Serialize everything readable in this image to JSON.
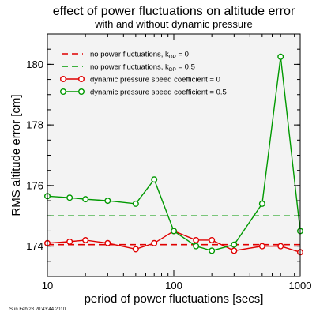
{
  "chart_data": {
    "type": "line",
    "title": "effect of power fluctuations on altitude error",
    "subtitle": "with and without dynamic pressure",
    "xlabel": "period of power fluctuations [secs]",
    "ylabel": "RMS altitude error [cm]",
    "x_scale": "log",
    "xlim": [
      10,
      1000
    ],
    "ylim": [
      173,
      181
    ],
    "x_ticks": [
      {
        "value": 10,
        "label": "10"
      },
      {
        "value": 100,
        "label": "100"
      },
      {
        "value": 1000,
        "label": "1000"
      }
    ],
    "y_ticks": [
      {
        "value": 174,
        "label": "174"
      },
      {
        "value": 176,
        "label": "176"
      },
      {
        "value": 178,
        "label": "178"
      },
      {
        "value": 180,
        "label": "180"
      }
    ],
    "grid": false,
    "legend_position": "top-left",
    "reference_lines": [
      {
        "label_main": "no power fluctuations, k",
        "label_sub": "DP",
        "label_tail": " = 0",
        "value": 174.05,
        "color": "#e00000",
        "style": "dashed"
      },
      {
        "label_main": "no power fluctuations, k",
        "label_sub": "DP",
        "label_tail": " = 0.5",
        "value": 175.0,
        "color": "#009900",
        "style": "dashed"
      }
    ],
    "series": [
      {
        "name": "dynamic pressure speed coefficient = 0",
        "color": "#e00000",
        "x": [
          10,
          15,
          20,
          30,
          50,
          70,
          100,
          150,
          200,
          300,
          500,
          700,
          1000
        ],
        "y": [
          174.1,
          174.15,
          174.2,
          174.1,
          173.9,
          174.1,
          174.5,
          174.2,
          174.2,
          173.85,
          174.0,
          174.0,
          173.8
        ]
      },
      {
        "name": "dynamic pressure speed coefficient = 0.5",
        "color": "#009900",
        "x": [
          10,
          15,
          20,
          30,
          50,
          70,
          100,
          150,
          200,
          300,
          500,
          700,
          1000
        ],
        "y": [
          175.65,
          175.6,
          175.55,
          175.5,
          175.4,
          176.2,
          174.5,
          174.0,
          173.85,
          174.05,
          175.4,
          180.25,
          174.5
        ]
      }
    ]
  },
  "footer_timestamp": "Sun Feb 28 20:43:44 2010"
}
